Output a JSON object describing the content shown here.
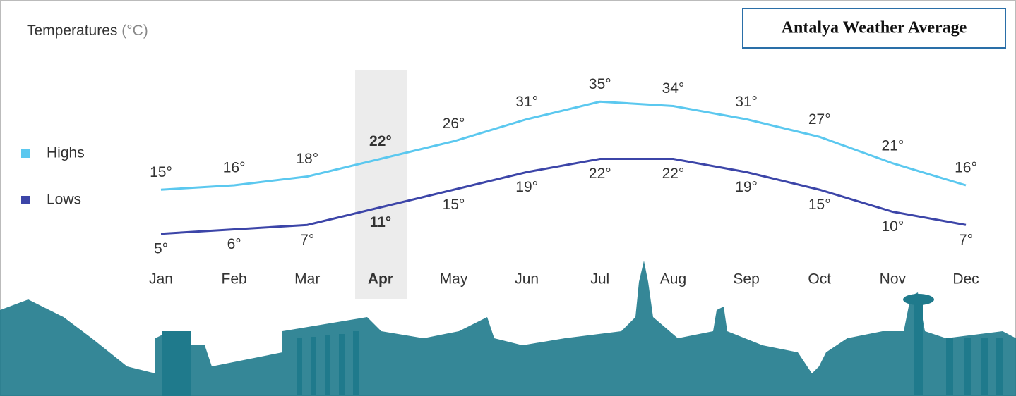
{
  "chart_data": {
    "type": "line",
    "title": "Temperatures",
    "unit": "(°C)",
    "badge": "Antalya Weather Average",
    "categories": [
      "Jan",
      "Feb",
      "Mar",
      "Apr",
      "May",
      "Jun",
      "Jul",
      "Aug",
      "Sep",
      "Oct",
      "Nov",
      "Dec"
    ],
    "highlighted_category": "Apr",
    "series": [
      {
        "name": "Highs",
        "color": "#5bc8ef",
        "values": [
          15,
          16,
          18,
          22,
          26,
          31,
          35,
          34,
          31,
          27,
          21,
          16
        ],
        "value_labels": [
          "15°",
          "16°",
          "18°",
          "22°",
          "26°",
          "31°",
          "35°",
          "34°",
          "31°",
          "27°",
          "21°",
          "16°"
        ]
      },
      {
        "name": "Lows",
        "color": "#3c45a8",
        "values": [
          5,
          6,
          7,
          11,
          15,
          19,
          22,
          22,
          19,
          15,
          10,
          7
        ],
        "value_labels": [
          "5°",
          "6°",
          "7°",
          "11°",
          "15°",
          "19°",
          "22°",
          "22°",
          "19°",
          "15°",
          "10°",
          "7°"
        ]
      }
    ],
    "ylim": [
      0,
      40
    ]
  }
}
